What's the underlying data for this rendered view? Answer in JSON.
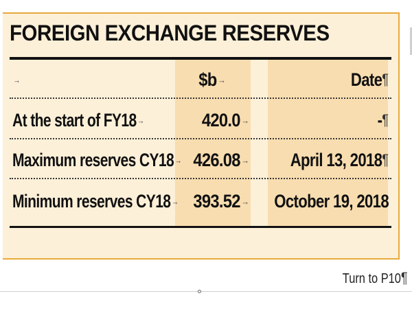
{
  "title": "FOREIGN EXCHANGE RESERVES",
  "header": {
    "label": "",
    "value": "$b",
    "date": "Date"
  },
  "rows": [
    {
      "label": "At the start of FY18",
      "value": "420.0",
      "date": "-"
    },
    {
      "label": "Maximum reserves CY18",
      "value": "426.08",
      "date": "April 13, 2018"
    },
    {
      "label": "Minimum reserves CY18",
      "value": "393.52",
      "date": "October 19, 2018"
    }
  ],
  "footer": "Turn to P10",
  "marks": {
    "tab": "→",
    "pilcrow": "¶"
  },
  "colors": {
    "box_background": "#fdf0d8",
    "box_border": "#e8a93a",
    "column_shade": "#f8ddb0",
    "text": "#111111"
  }
}
